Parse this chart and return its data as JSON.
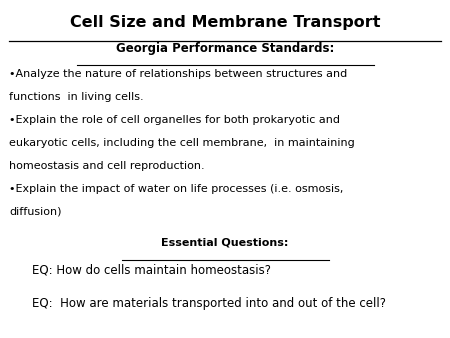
{
  "title": "Cell Size and Membrane Transport",
  "subtitle": "Georgia Performance Standards:",
  "bullet1_line1": "•Analyze the nature of relationships between structures and",
  "bullet1_line2": "functions  in living cells.",
  "bullet2_line1": "•Explain the role of cell organelles for both prokaryotic and",
  "bullet2_line2": "eukaryotic cells, including the cell membrane,  in maintaining",
  "bullet2_line3": "homeostasis and cell reproduction.",
  "bullet3_line1": "•Explain the impact of water on life processes (i.e. osmosis,",
  "bullet3_line2": "diffusion)",
  "section_header": "Essential Questions:",
  "eq1": "EQ: How do cells maintain homeostasis?",
  "eq2": "EQ:  How are materials transported into and out of the cell?",
  "bg_color": "#ffffff",
  "text_color": "#000000",
  "title_fontsize": 11.5,
  "subtitle_fontsize": 8.5,
  "bullet_fontsize": 8.0,
  "section_fontsize": 8.0,
  "eq_fontsize": 8.5
}
